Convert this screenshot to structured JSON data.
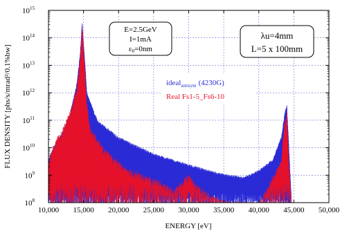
{
  "chart_data": {
    "type": "line",
    "xlabel": "ENERGY [eV]",
    "ylabel": "FLUX DENSITY [phs/s/mrad²/0.1%bw]",
    "xlim": [
      10000,
      50000
    ],
    "ylim_log10": [
      8,
      15
    ],
    "y_scale": "log",
    "grid": true,
    "x_ticks": [
      "10,000",
      "15,000",
      "20,000",
      "25,000",
      "30,000",
      "35,000",
      "40,000",
      "45,000",
      "50,000"
    ],
    "y_ticks": [
      "10",
      "10",
      "10",
      "10",
      "10",
      "10",
      "10",
      "10"
    ],
    "y_tick_exponents": [
      "8",
      "9",
      "10",
      "11",
      "12",
      "13",
      "14",
      "15"
    ],
    "parameters_box": {
      "line1": "E=2.5GeV",
      "line2": "I=1mA",
      "line3_symbol": "ε",
      "line3_sub": "0",
      "line3_rest": "=0nm"
    },
    "undulator_box": {
      "line1": "λu=4mm",
      "line2": "L=5 x 100mm"
    },
    "legend": {
      "placement": "center-right",
      "entries": [
        {
          "name": "ideal",
          "subscript": "antisym",
          "suffix": "(4230G)",
          "color": "#2b2bd6"
        },
        {
          "name": "Real Fs1-5_Fs6-10",
          "subscript": "",
          "suffix": "",
          "color": "#e8132a"
        }
      ]
    },
    "series": [
      {
        "name": "ideal antisym (4230G)",
        "color": "#2b2bd6",
        "envelope_x": [
          10000,
          11000,
          12000,
          13000,
          14000,
          14500,
          14800,
          15500,
          17000,
          20000,
          25000,
          30000,
          35000,
          38000,
          40000,
          42000,
          43200,
          43700,
          44000,
          44300,
          44700
        ],
        "envelope_log10y": [
          9.6,
          10.2,
          10.6,
          11.2,
          12.3,
          13.4,
          14.6,
          12.0,
          11.0,
          10.4,
          9.8,
          9.4,
          9.05,
          8.95,
          9.2,
          9.6,
          10.4,
          11.3,
          11.6,
          10.0,
          8.0
        ]
      },
      {
        "name": "Real Fs1-5_Fs6-10",
        "color": "#e8132a",
        "envelope_x": [
          10000,
          11000,
          12000,
          13000,
          14000,
          14500,
          14800,
          15500,
          16000,
          18000,
          20000,
          22000,
          25000,
          28000,
          29000,
          30000,
          31000,
          33000,
          35000,
          40000,
          43200,
          43700,
          44000,
          44300,
          44700
        ],
        "envelope_log10y": [
          9.6,
          10.3,
          10.7,
          11.3,
          12.2,
          13.2,
          14.5,
          11.6,
          10.7,
          10.0,
          9.5,
          9.2,
          8.9,
          8.5,
          8.8,
          9.05,
          8.7,
          8.3,
          8.1,
          8.0,
          9.6,
          11.1,
          11.4,
          9.5,
          8.0
        ]
      }
    ]
  }
}
